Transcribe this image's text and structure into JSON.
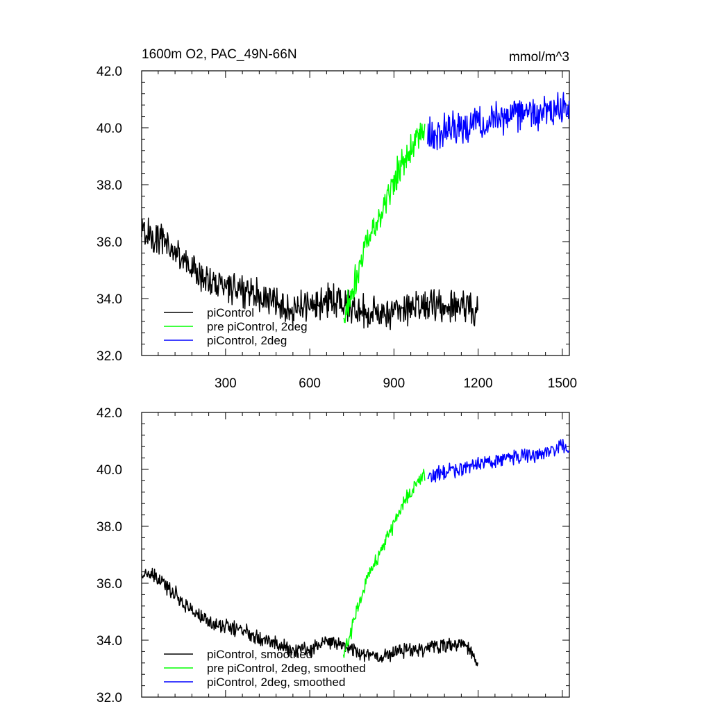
{
  "figure": {
    "title_left": "1600m O2, PAC_49N-66N",
    "title_right": "mmol/m^3"
  },
  "chart_data": [
    {
      "type": "line",
      "title": "1600m O2, PAC_49N-66N",
      "units": "mmol/m^3",
      "xlim": [
        1,
        1525
      ],
      "ylim": [
        32.0,
        42.0
      ],
      "xticks": [
        300,
        600,
        900,
        1200,
        1500
      ],
      "xtick_labels": [
        "300",
        "600",
        "900",
        "1200",
        "1500"
      ],
      "yticks": [
        32.0,
        34.0,
        36.0,
        38.0,
        40.0,
        42.0
      ],
      "ytick_labels": [
        "32.0",
        "34.0",
        "36.0",
        "38.0",
        "40.0",
        "42.0"
      ],
      "legend": "bottom-left",
      "series": [
        {
          "name": "piControl",
          "color": "#000000",
          "x": [
            1,
            25,
            50,
            75,
            100,
            125,
            150,
            175,
            200,
            225,
            250,
            275,
            300,
            325,
            350,
            375,
            400,
            425,
            450,
            475,
            500,
            525,
            550,
            575,
            600,
            625,
            650,
            675,
            700,
            725,
            750,
            775,
            800,
            825,
            850,
            875,
            900,
            925,
            950,
            975,
            1000,
            1025,
            1050,
            1075,
            1100,
            1125,
            1150,
            1175,
            1200
          ],
          "y": [
            36.4,
            36.3,
            36.2,
            36.0,
            35.8,
            35.6,
            35.4,
            35.1,
            34.9,
            34.7,
            34.6,
            34.5,
            34.5,
            34.4,
            34.3,
            34.3,
            34.2,
            34.1,
            34.0,
            33.9,
            33.8,
            33.7,
            33.6,
            33.7,
            33.7,
            33.8,
            33.9,
            33.9,
            33.9,
            33.8,
            33.7,
            33.6,
            33.5,
            33.5,
            33.4,
            33.5,
            33.6,
            33.6,
            33.7,
            33.7,
            33.7,
            33.8,
            33.8,
            33.8,
            33.8,
            33.8,
            33.8,
            33.7,
            33.4
          ]
        },
        {
          "name": "pre piControl, 2deg",
          "color": "#00ff00",
          "x": [
            720,
            740,
            760,
            780,
            800,
            820,
            840,
            860,
            880,
            900,
            920,
            940,
            960,
            980,
            1000,
            1010
          ],
          "y": [
            33.3,
            33.8,
            34.6,
            35.3,
            35.9,
            36.4,
            36.9,
            37.3,
            37.7,
            38.1,
            38.5,
            38.9,
            39.2,
            39.5,
            39.7,
            39.8
          ]
        },
        {
          "name": "piControl, 2deg",
          "color": "#0000ff",
          "x": [
            1020,
            1050,
            1080,
            1110,
            1140,
            1170,
            1200,
            1230,
            1260,
            1290,
            1320,
            1350,
            1380,
            1410,
            1440,
            1470,
            1500,
            1525
          ],
          "y": [
            39.7,
            39.8,
            39.9,
            40.0,
            40.0,
            40.1,
            40.2,
            40.3,
            40.3,
            40.4,
            40.4,
            40.5,
            40.5,
            40.5,
            40.6,
            40.6,
            40.7,
            40.6
          ]
        }
      ]
    },
    {
      "type": "line",
      "xlim": [
        1,
        1525
      ],
      "ylim": [
        32.0,
        42.0
      ],
      "xticks": [
        300,
        600,
        900,
        1200,
        1500
      ],
      "yticks": [
        32.0,
        34.0,
        36.0,
        38.0,
        40.0,
        42.0
      ],
      "ytick_labels": [
        "32.0",
        "34.0",
        "36.0",
        "38.0",
        "40.0",
        "42.0"
      ],
      "legend": "bottom-left",
      "series": [
        {
          "name": "piControl, smoothed",
          "color": "#000000",
          "x": [
            1,
            25,
            50,
            75,
            100,
            125,
            150,
            175,
            200,
            225,
            250,
            275,
            300,
            325,
            350,
            375,
            400,
            425,
            450,
            475,
            500,
            525,
            550,
            575,
            600,
            625,
            650,
            675,
            700,
            725,
            750,
            775,
            800,
            825,
            850,
            875,
            900,
            925,
            950,
            975,
            1000,
            1025,
            1050,
            1075,
            1100,
            1125,
            1150,
            1175,
            1200
          ],
          "y": [
            36.3,
            36.3,
            36.2,
            36.0,
            35.8,
            35.6,
            35.3,
            35.1,
            34.9,
            34.7,
            34.6,
            34.5,
            34.5,
            34.4,
            34.4,
            34.3,
            34.2,
            34.1,
            34.0,
            33.9,
            33.8,
            33.7,
            33.6,
            33.7,
            33.7,
            33.8,
            33.9,
            33.9,
            33.9,
            33.8,
            33.7,
            33.6,
            33.5,
            33.5,
            33.4,
            33.5,
            33.6,
            33.6,
            33.7,
            33.7,
            33.7,
            33.8,
            33.8,
            33.8,
            33.8,
            33.8,
            33.9,
            33.6,
            33.1
          ]
        },
        {
          "name": "pre piControl, 2deg, smoothed",
          "color": "#00ff00",
          "x": [
            720,
            740,
            760,
            780,
            800,
            820,
            840,
            860,
            880,
            900,
            920,
            940,
            960,
            980,
            1000,
            1010
          ],
          "y": [
            33.6,
            34.0,
            34.8,
            35.4,
            36.0,
            36.5,
            36.9,
            37.3,
            37.7,
            38.1,
            38.5,
            38.9,
            39.2,
            39.5,
            39.7,
            39.8
          ]
        },
        {
          "name": "piControl, 2deg, smoothed",
          "color": "#0000ff",
          "x": [
            1020,
            1050,
            1080,
            1110,
            1140,
            1170,
            1200,
            1230,
            1260,
            1290,
            1320,
            1350,
            1380,
            1410,
            1440,
            1470,
            1500,
            1525
          ],
          "y": [
            39.7,
            39.8,
            39.9,
            40.0,
            40.0,
            40.1,
            40.2,
            40.3,
            40.3,
            40.4,
            40.4,
            40.5,
            40.5,
            40.5,
            40.6,
            40.7,
            40.8,
            40.6
          ]
        }
      ]
    }
  ]
}
